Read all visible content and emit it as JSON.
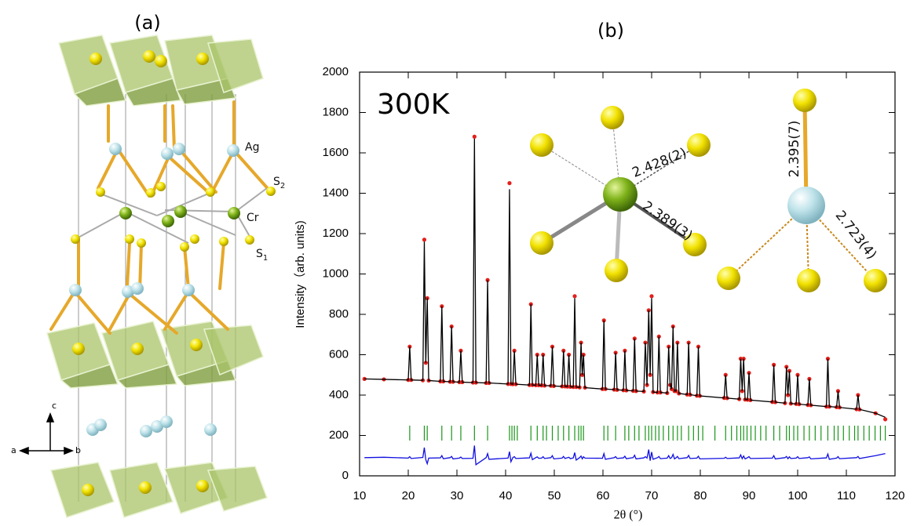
{
  "structure": {
    "title": "(a)",
    "labels": {
      "ag": "Ag",
      "cr": "Cr",
      "s2": [
        "S",
        "2"
      ],
      "s1": [
        "S",
        "1"
      ]
    },
    "axes": {
      "a": "a",
      "b": "b",
      "c": "c"
    }
  },
  "chart_data": {
    "type": "line",
    "title": "(b)",
    "annotation": "300K",
    "distances": [
      "2.428(2)",
      "2.389(3)",
      "2.395(7)",
      "2.723(4)"
    ],
    "xlabel": "2θ (°)",
    "ylabel": "Intensity（arb. units)",
    "xlim": [
      10,
      120
    ],
    "xticks": [
      10,
      20,
      30,
      40,
      50,
      60,
      70,
      80,
      90,
      100,
      110,
      120
    ],
    "ylim": [
      0,
      2000
    ],
    "yticks": [
      0,
      200,
      400,
      600,
      800,
      1000,
      1200,
      1400,
      1600,
      1800,
      2000
    ],
    "x": [
      11,
      15,
      20.0,
      20.3,
      20.6,
      23.0,
      23.3,
      23.6,
      23.9,
      24.2,
      26.6,
      26.9,
      27.2,
      28.6,
      28.9,
      29.2,
      30.5,
      30.8,
      31.1,
      33.3,
      33.6,
      33.9,
      36.0,
      36.3,
      36.6,
      40.5,
      40.8,
      41.1,
      41.5,
      41.8,
      42.1,
      44.9,
      45.2,
      45.5,
      46.2,
      46.5,
      46.8,
      47.4,
      47.7,
      48.0,
      49.3,
      49.6,
      49.9,
      51.6,
      51.9,
      52.2,
      52.7,
      53.0,
      53.3,
      53.9,
      54.2,
      54.5,
      55.2,
      55.5,
      55.75,
      56.0,
      56.3,
      59.9,
      60.2,
      60.5,
      62.3,
      62.6,
      62.9,
      64.2,
      64.5,
      64.8,
      66.2,
      66.5,
      66.8,
      68.4,
      68.7,
      69.05,
      69.4,
      69.7,
      70.0,
      70.3,
      71.2,
      71.5,
      71.8,
      73.2,
      73.5,
      73.8,
      74.1,
      74.4,
      74.7,
      75.0,
      75.3,
      75.6,
      77.3,
      77.6,
      77.9,
      79.3,
      79.6,
      79.9,
      84.9,
      85.2,
      85.5,
      88.0,
      88.3,
      88.6,
      88.9,
      89.2,
      89.7,
      90.0,
      90.3,
      94.8,
      95.1,
      95.4,
      97.4,
      97.7,
      98.0,
      98.3,
      98.6,
      99.7,
      100.0,
      100.3,
      102.1,
      102.4,
      102.7,
      105.9,
      106.2,
      106.5,
      108.0,
      108.3,
      108.6,
      112.1,
      112.4,
      112.7,
      116,
      118
    ],
    "series": [
      {
        "style": "markers",
        "color": "#e3201b",
        "values": [
          480,
          478,
          475,
          640,
          475,
          473,
          1170,
          560,
          880,
          472,
          468,
          840,
          468,
          466,
          740,
          466,
          464,
          620,
          464,
          462,
          1680,
          462,
          460,
          970,
          460,
          455,
          1450,
          455,
          454,
          620,
          454,
          450,
          850,
          450,
          449,
          600,
          449,
          448,
          600,
          447,
          446,
          640,
          445,
          443,
          620,
          443,
          442,
          600,
          441,
          440,
          890,
          440,
          438,
          660,
          500,
          600,
          437,
          430,
          770,
          430,
          427,
          610,
          426,
          424,
          620,
          423,
          421,
          680,
          420,
          418,
          660,
          450,
          820,
          500,
          890,
          415,
          413,
          690,
          413,
          410,
          640,
          450,
          430,
          740,
          420,
          420,
          660,
          408,
          403,
          660,
          402,
          397,
          640,
          396,
          386,
          500,
          385,
          380,
          580,
          420,
          580,
          378,
          377,
          510,
          375,
          366,
          550,
          365,
          360,
          540,
          400,
          520,
          358,
          356,
          500,
          355,
          351,
          480,
          350,
          343,
          580,
          343,
          340,
          420,
          339,
          330,
          400,
          329,
          310,
          280
        ]
      },
      {
        "style": "line",
        "color": "#000000",
        "values": [
          480,
          478,
          475,
          640,
          475,
          473,
          1160,
          560,
          880,
          472,
          468,
          840,
          468,
          466,
          740,
          466,
          464,
          620,
          464,
          462,
          1670,
          462,
          460,
          970,
          460,
          455,
          1420,
          455,
          454,
          620,
          454,
          450,
          850,
          450,
          449,
          600,
          449,
          448,
          600,
          447,
          446,
          640,
          445,
          443,
          620,
          443,
          442,
          600,
          441,
          440,
          880,
          440,
          438,
          660,
          500,
          600,
          437,
          430,
          770,
          430,
          427,
          610,
          426,
          424,
          620,
          423,
          421,
          680,
          420,
          418,
          660,
          450,
          820,
          500,
          880,
          415,
          413,
          690,
          413,
          410,
          640,
          450,
          430,
          740,
          420,
          420,
          660,
          408,
          403,
          660,
          402,
          397,
          640,
          396,
          386,
          500,
          385,
          380,
          580,
          420,
          580,
          378,
          377,
          510,
          375,
          366,
          550,
          365,
          360,
          540,
          400,
          520,
          358,
          356,
          500,
          355,
          351,
          480,
          350,
          343,
          580,
          343,
          340,
          420,
          339,
          330,
          400,
          329,
          310,
          290
        ]
      },
      {
        "style": "line",
        "color": "#1010e0",
        "values": [
          90,
          92,
          88,
          95,
          86,
          91,
          140,
          80,
          60,
          88,
          89,
          100,
          85,
          90,
          96,
          84,
          88,
          93,
          86,
          87,
          150,
          55,
          90,
          110,
          82,
          88,
          120,
          70,
          91,
          95,
          86,
          89,
          112,
          80,
          90,
          94,
          87,
          88,
          95,
          86,
          90,
          100,
          84,
          88,
          96,
          86,
          90,
          92,
          85,
          89,
          115,
          78,
          90,
          98,
          84,
          94,
          88,
          87,
          110,
          82,
          90,
          95,
          86,
          89,
          97,
          85,
          90,
          102,
          84,
          89,
          95,
          88,
          130,
          75,
          118,
          82,
          90,
          96,
          85,
          88,
          100,
          86,
          90,
          106,
          84,
          89,
          96,
          85,
          90,
          101,
          86,
          88,
          97,
          84,
          87,
          92,
          86,
          89,
          104,
          85,
          98,
          84,
          90,
          95,
          86,
          88,
          100,
          84,
          90,
          96,
          85,
          94,
          86,
          88,
          95,
          86,
          90,
          94,
          84,
          89,
          108,
          82,
          88,
          95,
          85,
          90,
          96,
          86,
          100,
          110
        ]
      }
    ],
    "bragg": {
      "color": "#1a961a",
      "positions": [
        20.3,
        23.3,
        23.9,
        26.9,
        28.9,
        30.8,
        33.6,
        36.3,
        40.8,
        41.3,
        41.8,
        42.4,
        45.2,
        46.5,
        47.7,
        48.4,
        49.6,
        50.8,
        51.9,
        53.0,
        54.2,
        55.0,
        55.5,
        56.0,
        60.2,
        61.0,
        62.6,
        64.5,
        65.3,
        66.5,
        67.4,
        68.7,
        69.4,
        70.0,
        70.8,
        71.5,
        72.4,
        73.5,
        74.4,
        75.3,
        76.1,
        77.6,
        78.6,
        79.6,
        80.5,
        83.0,
        85.2,
        86.4,
        87.5,
        88.3,
        88.9,
        89.6,
        90.4,
        91.3,
        92.4,
        93.5,
        95.1,
        96.3,
        97.7,
        98.3,
        99.2,
        100.0,
        101.3,
        102.4,
        103.6,
        104.8,
        106.2,
        107.5,
        108.3,
        109.4,
        110.6,
        111.7,
        112.4,
        113.6,
        114.7,
        115.9,
        117.0,
        118.0
      ]
    }
  }
}
